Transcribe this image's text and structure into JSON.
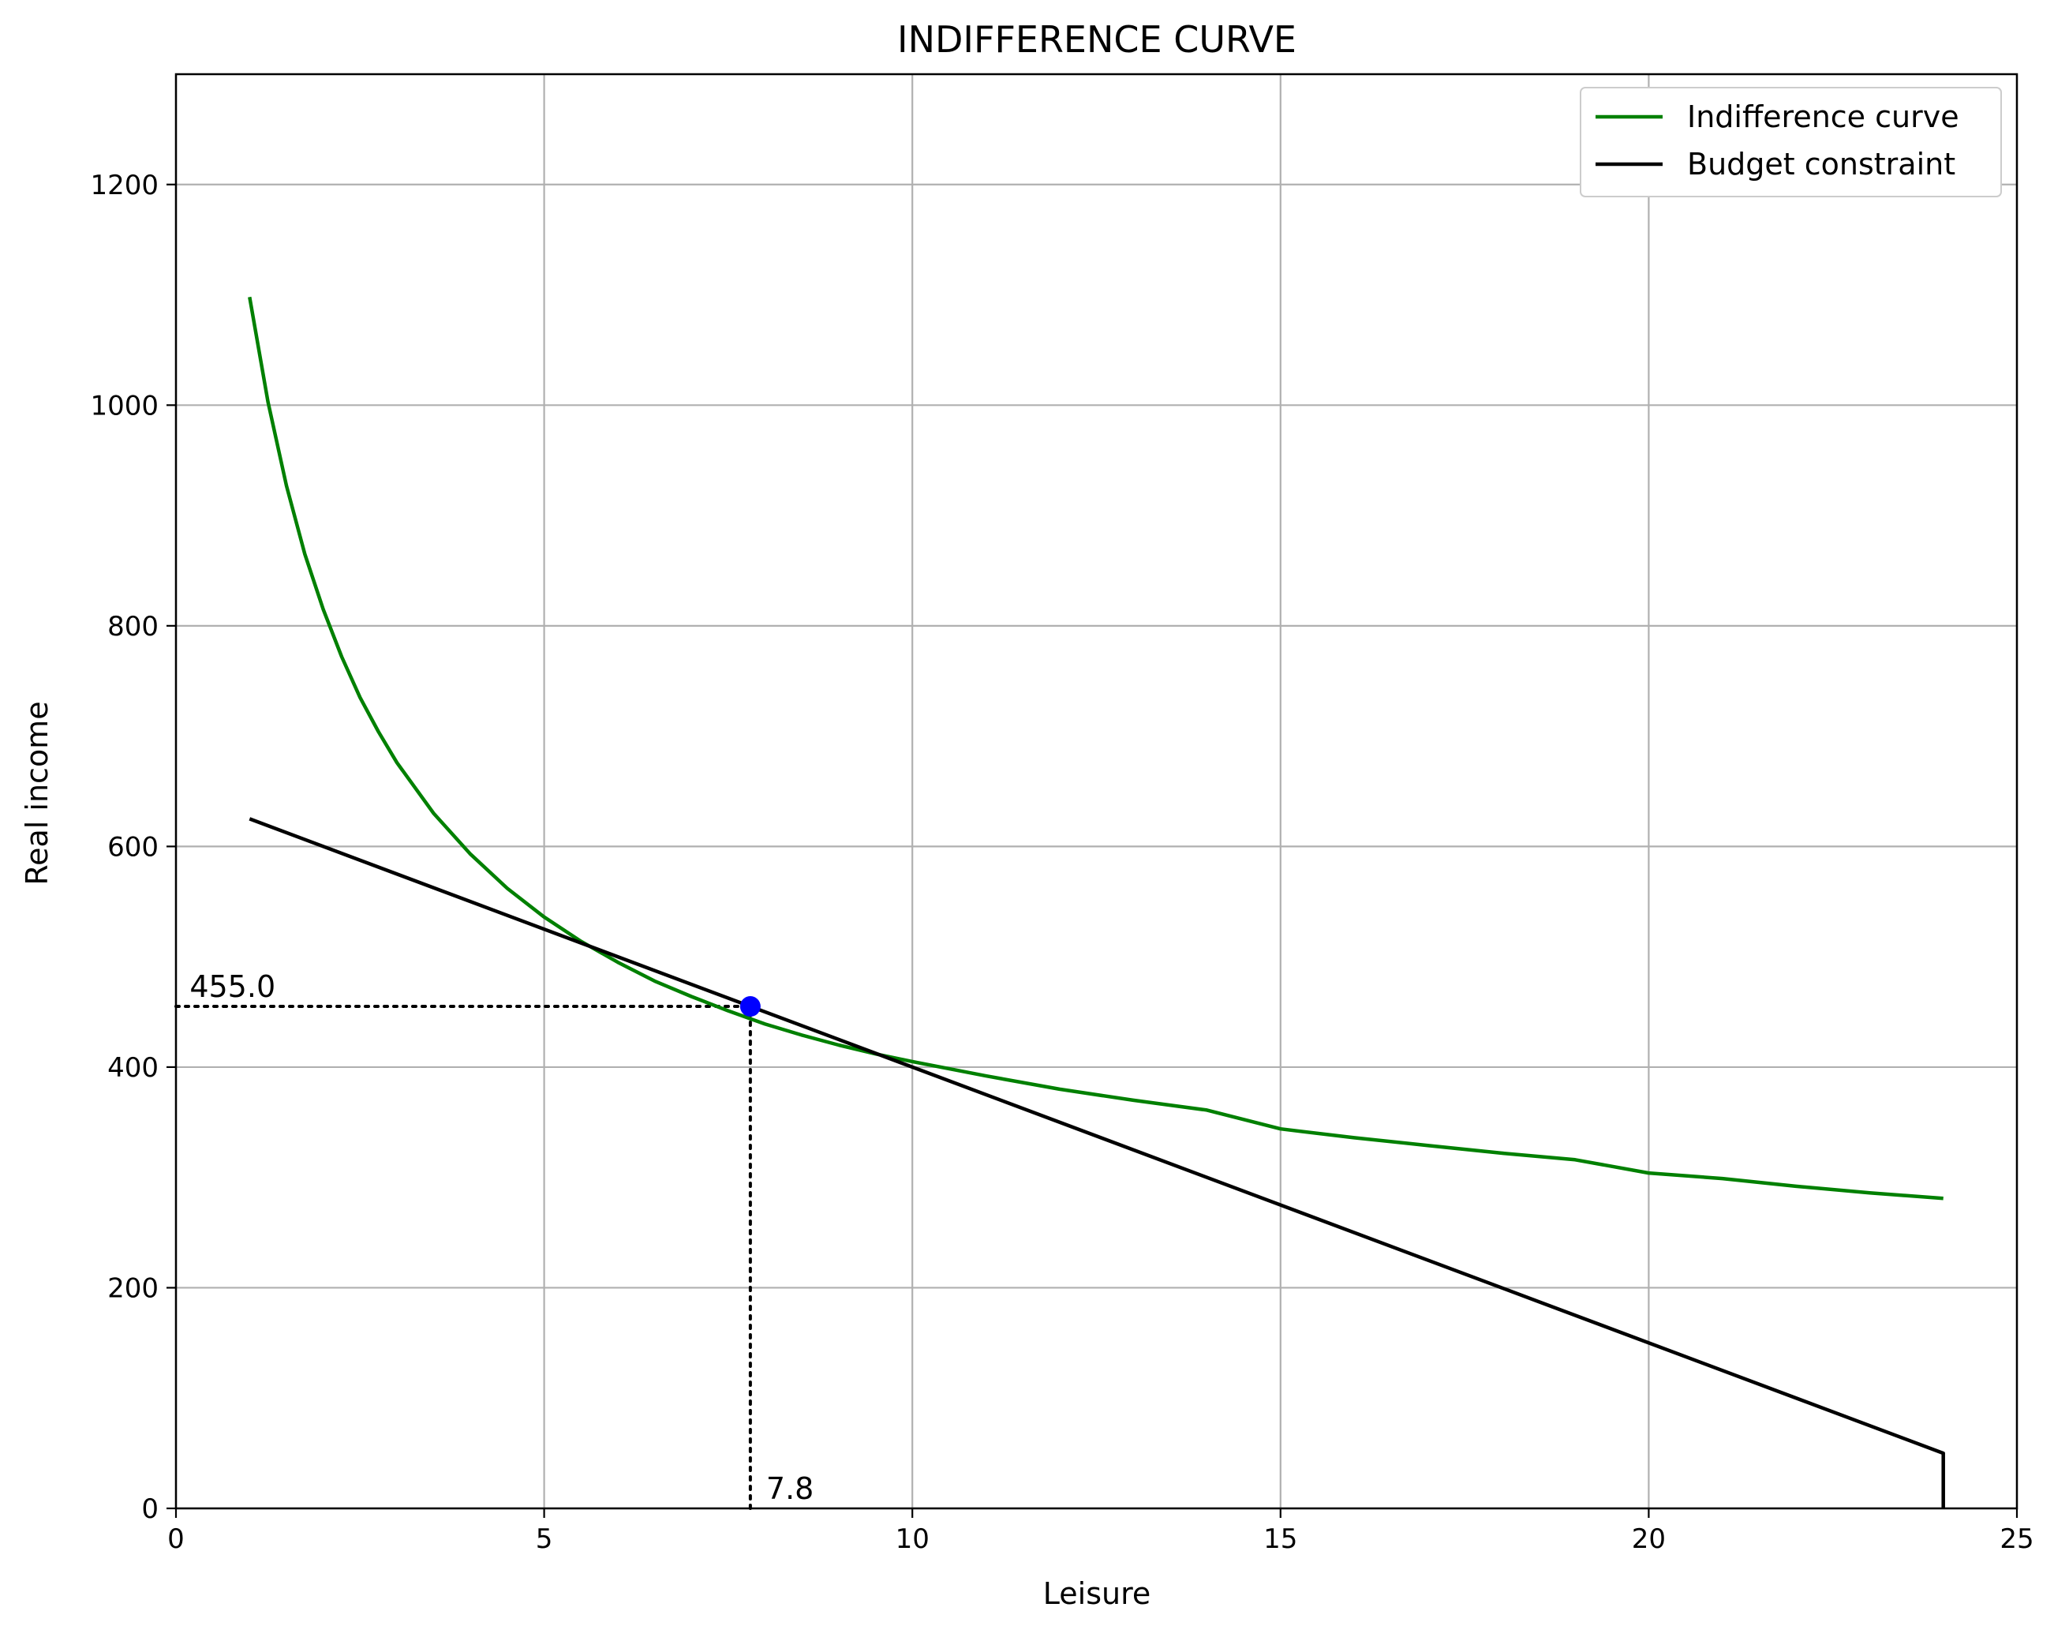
{
  "chart_data": {
    "type": "line",
    "title": "INDIFFERENCE CURVE",
    "xlabel": "Leisure",
    "ylabel": "Real income",
    "xlim": [
      0,
      25
    ],
    "ylim": [
      0,
      1300
    ],
    "xticks": [
      0,
      5,
      10,
      15,
      20,
      25
    ],
    "yticks": [
      0,
      200,
      400,
      600,
      800,
      1000,
      1200
    ],
    "grid": true,
    "legend_position": "top-right",
    "series": [
      {
        "name": "Indifference curve",
        "color": "#008000",
        "style": "solid",
        "x": [
          1,
          1.25,
          1.5,
          1.75,
          2,
          2.25,
          2.5,
          2.75,
          3,
          3.5,
          4,
          4.5,
          5,
          5.5,
          6,
          6.5,
          7,
          7.5,
          7.8,
          8,
          8.5,
          9,
          9.5,
          10,
          11,
          12,
          13,
          14,
          15,
          16,
          17,
          18,
          19,
          20,
          21,
          22,
          23,
          24
        ],
        "y": [
          1098,
          1003,
          927,
          865,
          815,
          772,
          735,
          704,
          676,
          630,
          593,
          562,
          536,
          514,
          495,
          478,
          464,
          451,
          455,
          439,
          429,
          420,
          412,
          405,
          392,
          380,
          370,
          361,
          344,
          336,
          329,
          322,
          316,
          304,
          299,
          292,
          286,
          281
        ]
      },
      {
        "name": "Budget constraint",
        "color": "#000000",
        "style": "solid",
        "x": [
          1,
          24,
          24
        ],
        "y": [
          625,
          50,
          0
        ]
      }
    ],
    "optimum_point": {
      "x": 7.8,
      "y": 455.0,
      "color": "#0000ff"
    },
    "annotations": [
      {
        "text": "455.0",
        "x": 0.1,
        "y": 455.0
      },
      {
        "text": "7.8",
        "x": 7.8,
        "y": 0
      }
    ],
    "reference_lines": [
      {
        "from": [
          0,
          455.0
        ],
        "to": [
          7.8,
          455.0
        ],
        "style": "dotted"
      },
      {
        "from": [
          7.8,
          0
        ],
        "to": [
          7.8,
          455.0
        ],
        "style": "dotted"
      }
    ]
  }
}
